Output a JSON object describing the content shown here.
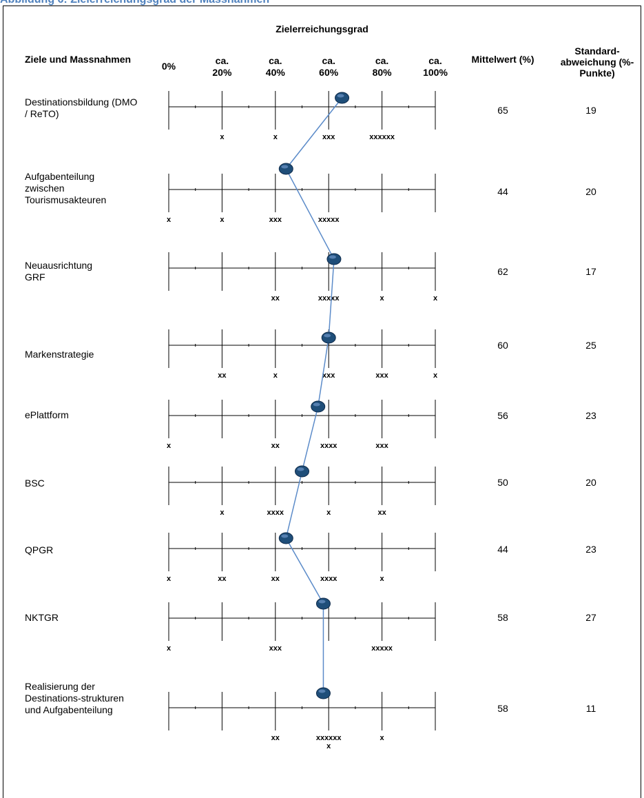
{
  "figure": {
    "title": "Abbildung 6: Zielerreichungsgrad der Massnahmen"
  },
  "chart_data": {
    "type": "line",
    "title": "Zielerreichungsgrad",
    "header_left": "Ziele und Massnahmen",
    "header_mean": "Mittelwert (%)",
    "header_std": "Standard-abweichung (%-Punkte)",
    "scale_labels": [
      "0%",
      "ca. 20%",
      "ca. 40%",
      "ca. 60%",
      "ca. 80%",
      "ca. 100%"
    ],
    "scale_values": [
      0,
      20,
      40,
      60,
      80,
      100
    ],
    "xlim": [
      0,
      100
    ],
    "marker_color": "#1f4e79",
    "line_color": "#5b8bc9",
    "rows": [
      {
        "label": "Destinationsbildung (DMO / ReTO)",
        "mean": 65,
        "std": 19,
        "mean_label": "65",
        "std_label": "19",
        "freq": [
          "",
          "x",
          "x",
          "xxx",
          "xxxxxx",
          ""
        ]
      },
      {
        "label": "Aufgabenteilung zwischen Tourismusakteuren",
        "mean": 44,
        "std": 20,
        "mean_label": "44",
        "std_label": "20",
        "freq": [
          "x",
          "x",
          "xxx",
          "xxxxx",
          "",
          ""
        ]
      },
      {
        "label": "Neuausrichtung GRF",
        "mean": 62,
        "std": 17,
        "mean_label": "62",
        "std_label": "17",
        "freq": [
          "",
          "",
          "xx",
          "xxxxx",
          "x",
          "x"
        ]
      },
      {
        "label": "Markenstrategie",
        "mean": 60,
        "std": 25,
        "mean_label": "60",
        "std_label": "25",
        "freq": [
          "",
          "xx",
          "x",
          "xxx",
          "xxx",
          "x"
        ]
      },
      {
        "label": "ePlattform",
        "mean": 56,
        "std": 23,
        "mean_label": "56",
        "std_label": "23",
        "freq": [
          "x",
          "",
          "xx",
          "xxxx",
          "xxx",
          ""
        ]
      },
      {
        "label": "BSC",
        "mean": 50,
        "std": 20,
        "mean_label": "50",
        "std_label": "20",
        "freq": [
          "",
          "x",
          "xxxx",
          "x",
          "xx",
          ""
        ]
      },
      {
        "label": "QPGR",
        "mean": 44,
        "std": 23,
        "mean_label": "44",
        "std_label": "23",
        "freq": [
          "x",
          "xx",
          "xx",
          "xxxx",
          "x",
          ""
        ]
      },
      {
        "label": "NKTGR",
        "mean": 58,
        "std": 27,
        "mean_label": "58",
        "std_label": "27",
        "freq": [
          "x",
          "",
          "xxx",
          "",
          "xxxxx",
          ""
        ]
      },
      {
        "label": "Realisierung der Destinations-strukturen und Aufgabenteilung",
        "mean": 58,
        "std": 11,
        "mean_label": "58",
        "std_label": "11",
        "freq": [
          "",
          "",
          "xx",
          "xxxxxx\nx",
          "x",
          ""
        ]
      }
    ]
  }
}
